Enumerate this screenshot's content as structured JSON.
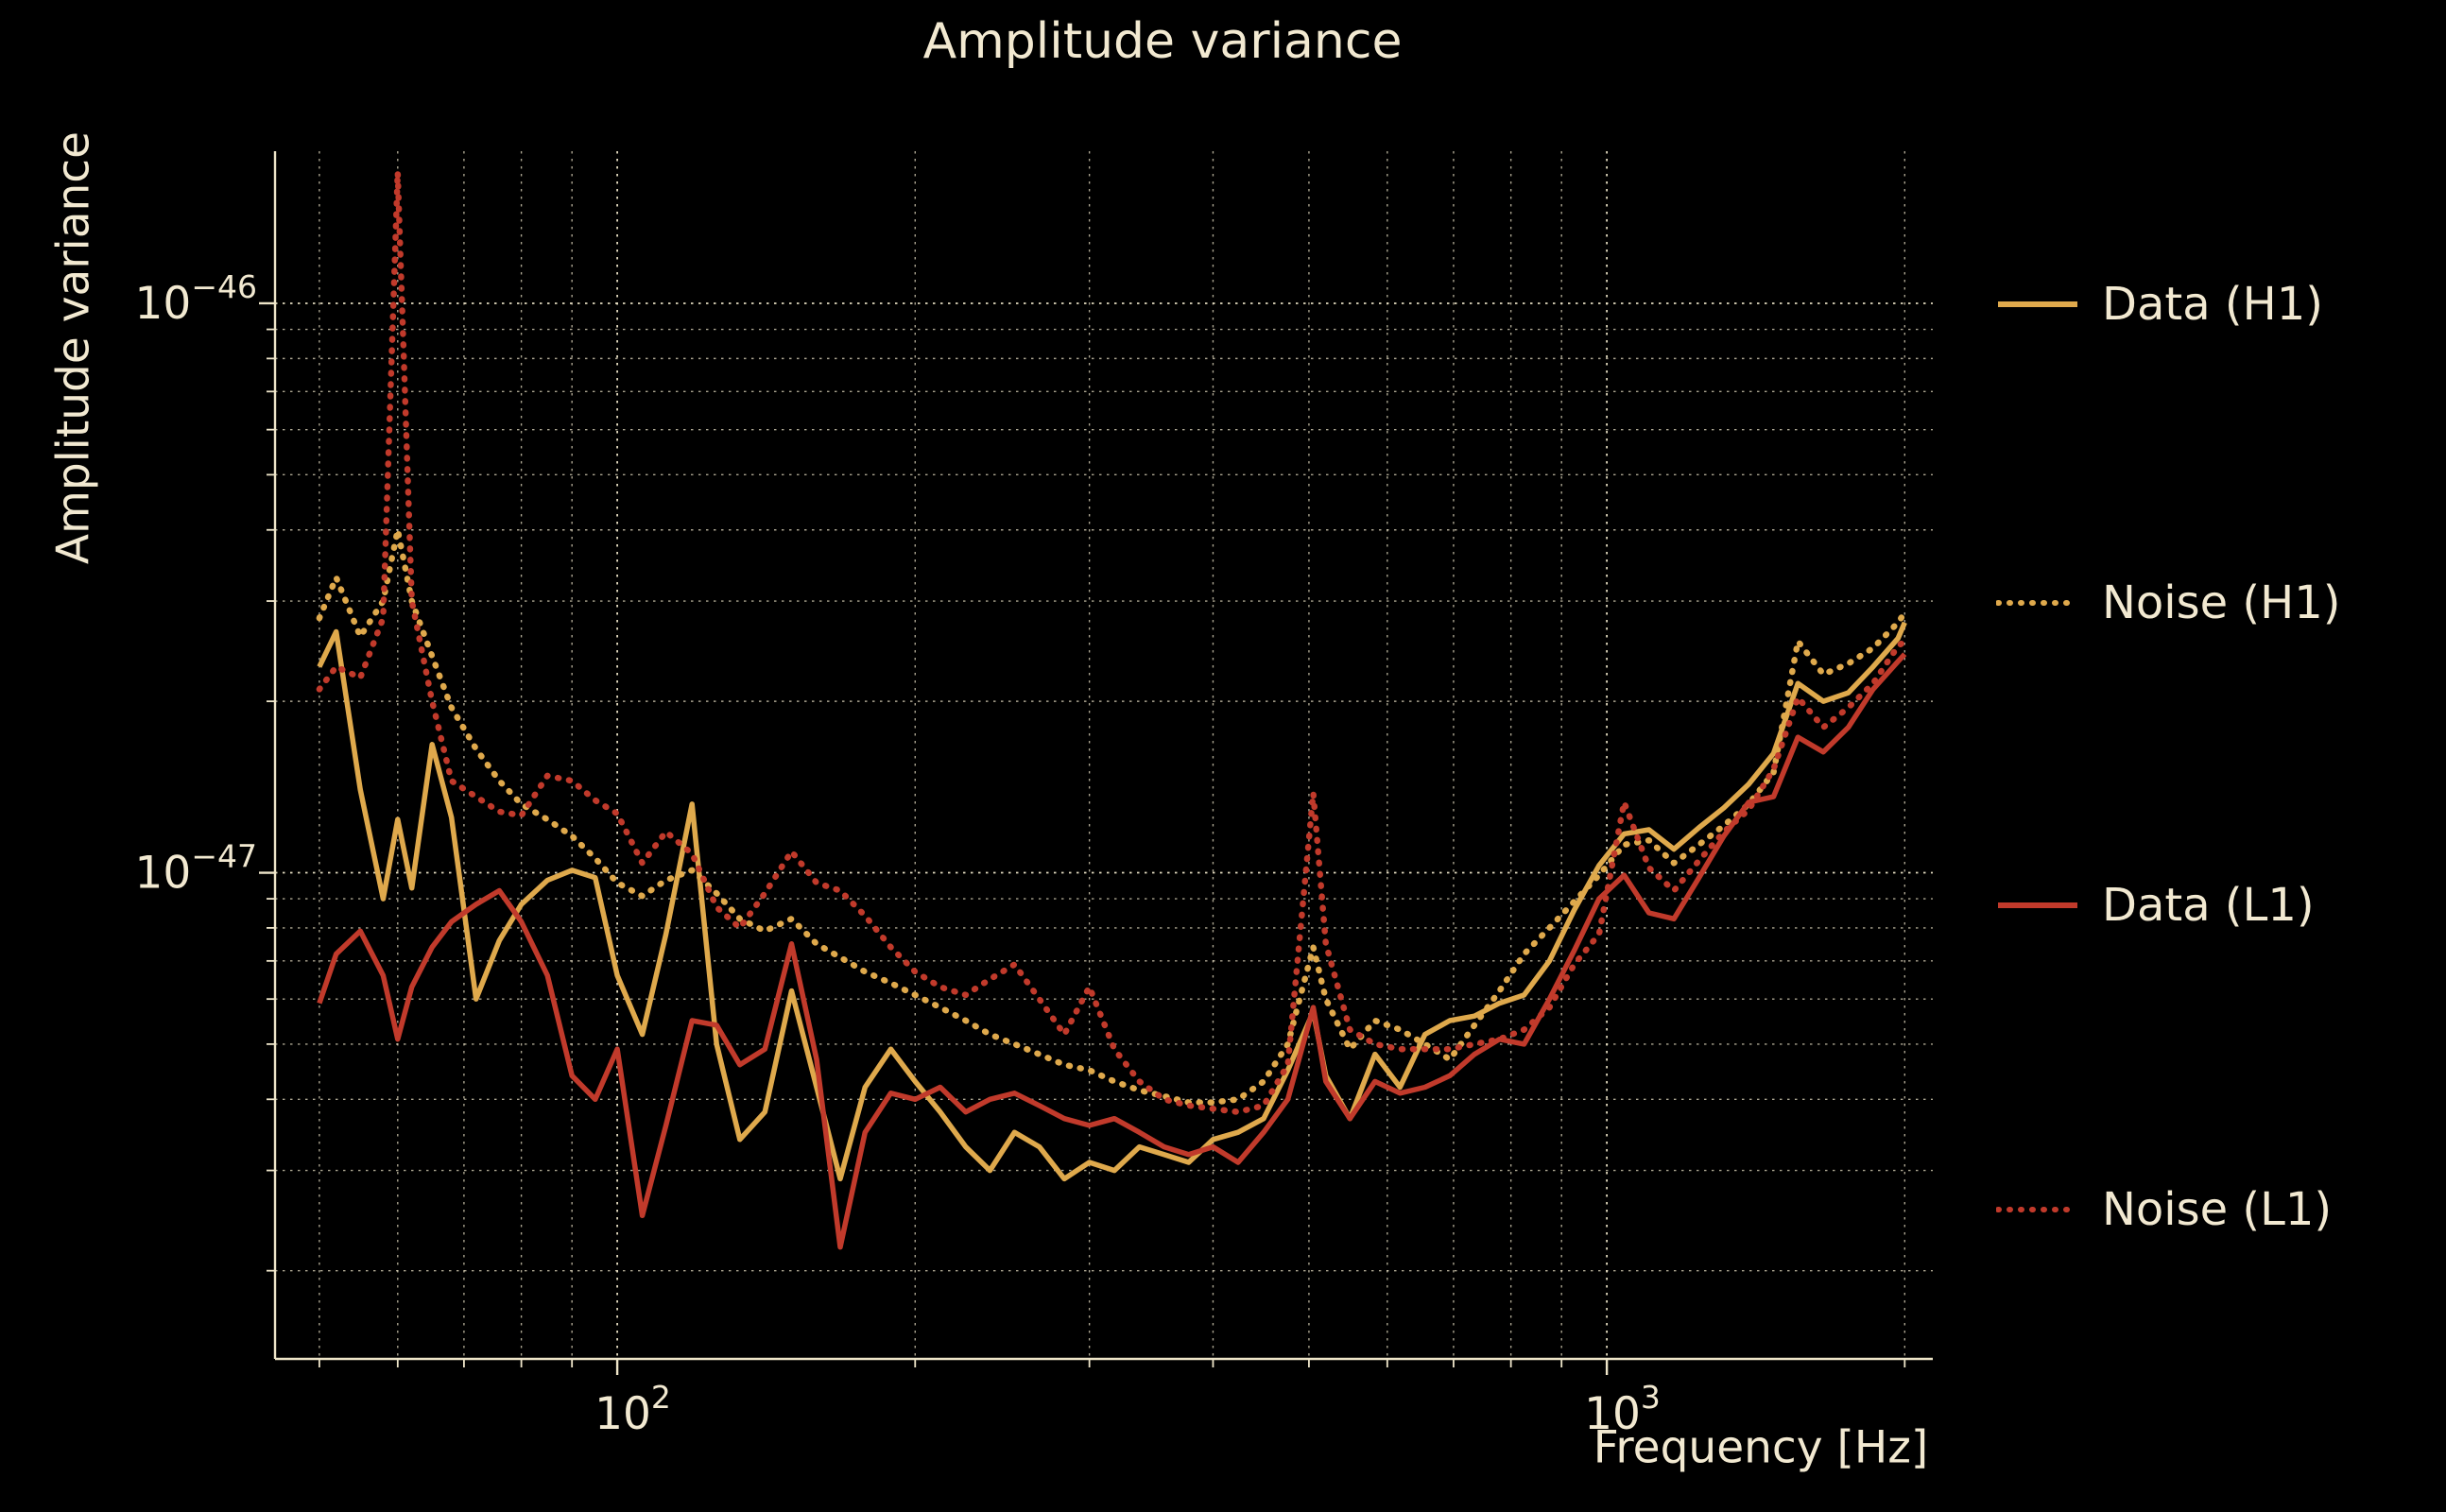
{
  "title": "Amplitude variance",
  "colors": {
    "background": "#000000",
    "text": "#F2E9D1",
    "grid": "#EEE5C9",
    "gold": "#DFA94C",
    "red": "#C13A2B"
  },
  "chart_data": {
    "type": "line",
    "title": "Amplitude variance",
    "xlabel": "Frequency [Hz]",
    "ylabel": "Amplitude variance",
    "x_scale": "log",
    "y_scale": "log",
    "xlim": [
      45.1,
      2135
    ],
    "ylim": [
      1.4e-48,
      1.85e-46
    ],
    "grid": "dotted",
    "legend_position": "right",
    "x_ticks": [
      {
        "value": 100,
        "base": "10",
        "exp": "2"
      },
      {
        "value": 1000,
        "base": "10",
        "exp": "3"
      }
    ],
    "y_ticks": [
      {
        "value": 1e-46,
        "base": "10",
        "exp": "−46"
      },
      {
        "value": 1e-47,
        "base": "10",
        "exp": "−47"
      }
    ],
    "x_gridlines": [
      50,
      60,
      70,
      80,
      90,
      100,
      200,
      300,
      400,
      500,
      600,
      700,
      800,
      900,
      1000,
      2000
    ],
    "x_major": [
      100,
      1000
    ],
    "y_gridlines": [
      1e-46,
      9e-47,
      8e-47,
      7e-47,
      6e-47,
      5e-47,
      4e-47,
      3e-47,
      2e-47,
      1e-47,
      9e-48,
      8e-48,
      7e-48,
      6e-48,
      5e-48,
      4e-48,
      3e-48,
      2e-48
    ],
    "y_major": [
      1e-46,
      1e-47
    ],
    "frequencies_hz": [
      50,
      52,
      55,
      58,
      60,
      62,
      65,
      68,
      72,
      76,
      80,
      85,
      90,
      95,
      100,
      106,
      112,
      119,
      126,
      133,
      141,
      150,
      159,
      168,
      178,
      189,
      200,
      212,
      225,
      238,
      252,
      267,
      283,
      300,
      318,
      337,
      357,
      378,
      400,
      424,
      450,
      476,
      505,
      520,
      550,
      583,
      618,
      655,
      694,
      735,
      779,
      825,
      875,
      927,
      982,
      1041,
      1103,
      1169,
      1239,
      1313,
      1391,
      1474,
      1560,
      1655,
      1754,
      1858,
      1969,
      2000
    ],
    "series": [
      {
        "name": "Data (H1)",
        "color": "#DFA94C",
        "style": "solid",
        "values": [
          2.3e-47,
          2.65e-47,
          1.4e-47,
          9e-48,
          1.24e-47,
          9.4e-48,
          1.68e-47,
          1.25e-47,
          6e-48,
          7.6e-48,
          8.8e-48,
          9.7e-48,
          1.01e-47,
          9.8e-48,
          6.6e-48,
          5.2e-48,
          7.8e-48,
          1.32e-47,
          5e-48,
          3.4e-48,
          3.8e-48,
          6.2e-48,
          4.2e-48,
          2.9e-48,
          4.2e-48,
          4.9e-48,
          4.3e-48,
          3.8e-48,
          3.3e-48,
          3e-48,
          3.5e-48,
          3.3e-48,
          2.9e-48,
          3.1e-48,
          3e-48,
          3.3e-48,
          3.2e-48,
          3.1e-48,
          3.4e-48,
          3.5e-48,
          3.7e-48,
          4.5e-48,
          5.7e-48,
          4.4e-48,
          3.7e-48,
          4.8e-48,
          4.2e-48,
          5.2e-48,
          5.5e-48,
          5.6e-48,
          5.9e-48,
          6.1e-48,
          7e-48,
          8.6e-48,
          1.03e-47,
          1.17e-47,
          1.19e-47,
          1.1e-47,
          1.2e-47,
          1.3e-47,
          1.43e-47,
          1.62e-47,
          2.15e-47,
          2e-47,
          2.07e-47,
          2.3e-47,
          2.58e-47,
          2.75e-47
        ]
      },
      {
        "name": "Noise (H1)",
        "color": "#DFA94C",
        "style": "dotted",
        "values": [
          2.8e-47,
          3.3e-47,
          2.6e-47,
          3e-47,
          4e-47,
          3e-47,
          2.4e-47,
          1.95e-47,
          1.65e-47,
          1.45e-47,
          1.32e-47,
          1.24e-47,
          1.16e-47,
          1.06e-47,
          9.6e-48,
          9.1e-48,
          9.7e-48,
          1.01e-47,
          9.2e-48,
          8.3e-48,
          7.9e-48,
          8.3e-48,
          7.5e-48,
          7.1e-48,
          6.7e-48,
          6.4e-48,
          6.1e-48,
          5.8e-48,
          5.5e-48,
          5.2e-48,
          5e-48,
          4.8e-48,
          4.6e-48,
          4.5e-48,
          4.3e-48,
          4.15e-48,
          4.05e-48,
          3.95e-48,
          3.95e-48,
          4e-48,
          4.3e-48,
          5e-48,
          7.4e-48,
          6e-48,
          4.9e-48,
          5.5e-48,
          5.3e-48,
          5e-48,
          4.7e-48,
          5.4e-48,
          6.2e-48,
          7.2e-48,
          8e-48,
          8.9e-48,
          9.9e-48,
          1.12e-47,
          1.14e-47,
          1.04e-47,
          1.12e-47,
          1.21e-47,
          1.32e-47,
          1.5e-47,
          2.55e-47,
          2.23e-47,
          2.33e-47,
          2.48e-47,
          2.75e-47,
          2.86e-47
        ]
      },
      {
        "name": "Data (L1)",
        "color": "#C13A2B",
        "style": "solid",
        "values": [
          5.9e-48,
          7.2e-48,
          7.9e-48,
          6.6e-48,
          5.1e-48,
          6.3e-48,
          7.4e-48,
          8.2e-48,
          8.8e-48,
          9.3e-48,
          8.2e-48,
          6.6e-48,
          4.4e-48,
          4e-48,
          4.9e-48,
          2.5e-48,
          3.6e-48,
          5.5e-48,
          5.4e-48,
          4.6e-48,
          4.9e-48,
          7.5e-48,
          4.7e-48,
          2.2e-48,
          3.5e-48,
          4.1e-48,
          4e-48,
          4.2e-48,
          3.8e-48,
          4e-48,
          4.1e-48,
          3.9e-48,
          3.7e-48,
          3.6e-48,
          3.7e-48,
          3.5e-48,
          3.3e-48,
          3.2e-48,
          3.3e-48,
          3.1e-48,
          3.5e-48,
          4e-48,
          5.8e-48,
          4.3e-48,
          3.7e-48,
          4.3e-48,
          4.1e-48,
          4.2e-48,
          4.4e-48,
          4.8e-48,
          5.1e-48,
          5e-48,
          6e-48,
          7.3e-48,
          9e-48,
          9.9e-48,
          8.5e-48,
          8.3e-48,
          9.8e-48,
          1.16e-47,
          1.33e-47,
          1.36e-47,
          1.73e-47,
          1.63e-47,
          1.8e-47,
          2.1e-47,
          2.35e-47,
          2.42e-47
        ]
      },
      {
        "name": "Noise (L1)",
        "color": "#C13A2B",
        "style": "dotted",
        "values": [
          2.1e-47,
          2.3e-47,
          2.2e-47,
          2.8e-47,
          1.7e-46,
          3e-47,
          2e-47,
          1.45e-47,
          1.36e-47,
          1.28e-47,
          1.26e-47,
          1.48e-47,
          1.45e-47,
          1.34e-47,
          1.27e-47,
          1.04e-47,
          1.18e-47,
          1.08e-47,
          8.7e-48,
          8e-48,
          9.2e-48,
          1.09e-47,
          9.6e-48,
          9.3e-48,
          8.4e-48,
          7.4e-48,
          6.7e-48,
          6.3e-48,
          6.1e-48,
          6.5e-48,
          6.9e-48,
          6e-48,
          5.2e-48,
          6.3e-48,
          4.9e-48,
          4.3e-48,
          4e-48,
          3.9e-48,
          3.85e-48,
          3.8e-48,
          3.9e-48,
          4.6e-48,
          1.38e-47,
          7.5e-48,
          5.3e-48,
          5e-48,
          4.9e-48,
          4.9e-48,
          4.9e-48,
          5e-48,
          5.1e-48,
          5.3e-48,
          5.8e-48,
          6.9e-48,
          7.8e-48,
          1.33e-47,
          1.02e-47,
          9.3e-48,
          1.05e-47,
          1.18e-47,
          1.29e-47,
          1.52e-47,
          2.03e-47,
          1.8e-47,
          1.95e-47,
          2.15e-47,
          2.5e-47,
          2.55e-47
        ]
      }
    ]
  },
  "legend": {
    "items": [
      {
        "label": "Data (H1)"
      },
      {
        "label": "Noise (H1)"
      },
      {
        "label": "Data (L1)"
      },
      {
        "label": "Noise (L1)"
      }
    ]
  }
}
